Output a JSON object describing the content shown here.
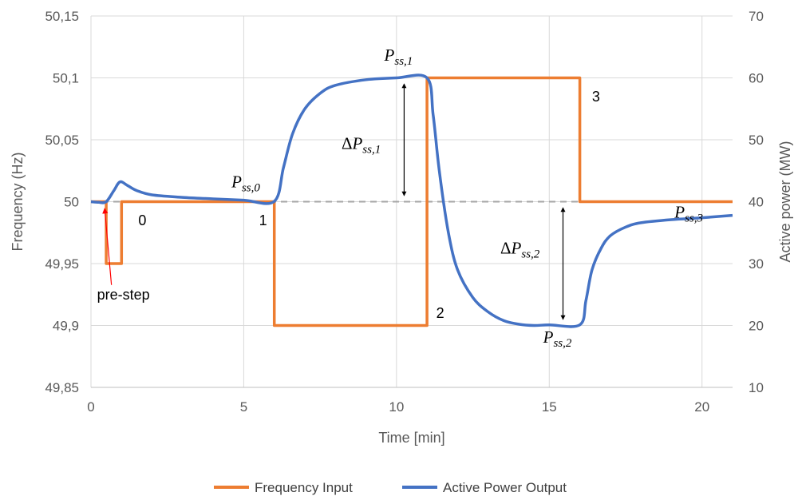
{
  "chart_data": {
    "type": "line",
    "title": "",
    "xlabel": "Time [min]",
    "ylabel_left": "Frequency (Hz)",
    "ylabel_right": "Active power (MW)",
    "xlim": [
      0,
      21
    ],
    "ylim_left": [
      49.85,
      50.15
    ],
    "ylim_right": [
      10,
      70
    ],
    "x_ticks": [
      0,
      5,
      10,
      15,
      20
    ],
    "x_tick_labels": [
      "0",
      "5",
      "10",
      "15",
      "20"
    ],
    "y_left_ticks": [
      49.85,
      49.9,
      49.95,
      50,
      50.05,
      50.1,
      50.15
    ],
    "y_left_tick_labels": [
      "49,85",
      "49,9",
      "49,95",
      "50",
      "50,05",
      "50,1",
      "50,15"
    ],
    "y_right_ticks": [
      10,
      20,
      30,
      40,
      50,
      60,
      70
    ],
    "y_right_tick_labels": [
      "10",
      "20",
      "30",
      "40",
      "50",
      "60",
      "70"
    ],
    "grid": "horizontal",
    "legend_position": "bottom",
    "reference_line": {
      "axis": "left",
      "y": 50,
      "style": "dashed",
      "color": "#a6a6a6"
    },
    "series": [
      {
        "name": "Frequency Input",
        "axis": "left",
        "color": "#ed7d31",
        "points": [
          [
            0,
            50.0
          ],
          [
            0.5,
            50.0
          ],
          [
            0.5,
            49.95
          ],
          [
            1.0,
            49.95
          ],
          [
            1.0,
            50.0
          ],
          [
            6.0,
            50.0
          ],
          [
            6.0,
            49.9
          ],
          [
            11.0,
            49.9
          ],
          [
            11.0,
            50.1
          ],
          [
            16.0,
            50.1
          ],
          [
            16.0,
            50.0
          ],
          [
            21.0,
            50.0
          ]
        ]
      },
      {
        "name": "Active Power Output",
        "axis": "right",
        "color": "#4472c4",
        "points": [
          [
            0,
            40.0
          ],
          [
            0.25,
            39.9
          ],
          [
            0.5,
            40.0
          ],
          [
            0.75,
            41.8
          ],
          [
            0.95,
            43.2
          ],
          [
            1.2,
            42.6
          ],
          [
            1.5,
            41.8
          ],
          [
            2.0,
            41.1
          ],
          [
            3.0,
            40.7
          ],
          [
            4.0,
            40.45
          ],
          [
            5.0,
            40.25
          ],
          [
            6.0,
            40.05
          ],
          [
            6.3,
            45.5
          ],
          [
            6.6,
            51.0
          ],
          [
            7.0,
            55.0
          ],
          [
            7.5,
            57.5
          ],
          [
            8.0,
            58.8
          ],
          [
            9.0,
            59.7
          ],
          [
            10.0,
            60.0
          ],
          [
            11.0,
            60.0
          ],
          [
            11.2,
            54.0
          ],
          [
            11.4,
            45.0
          ],
          [
            11.7,
            35.0
          ],
          [
            12.0,
            29.0
          ],
          [
            12.5,
            24.5
          ],
          [
            13.0,
            22.2
          ],
          [
            13.5,
            20.8
          ],
          [
            14.0,
            20.2
          ],
          [
            14.5,
            20.0
          ],
          [
            15.0,
            20.1
          ],
          [
            16.0,
            20.1
          ],
          [
            16.2,
            24.0
          ],
          [
            16.4,
            29.0
          ],
          [
            16.7,
            32.5
          ],
          [
            17.0,
            34.5
          ],
          [
            17.5,
            35.9
          ],
          [
            18.0,
            36.6
          ],
          [
            19.0,
            37.1
          ],
          [
            20.0,
            37.4
          ],
          [
            21.0,
            37.8
          ]
        ]
      }
    ],
    "annotations": [
      {
        "text": "0",
        "x": 1.55,
        "y_left": 49.985
      },
      {
        "text": "1",
        "x": 5.5,
        "y_left": 49.985
      },
      {
        "text": "2",
        "x": 11.3,
        "y_left": 49.91
      },
      {
        "text": "3",
        "x": 16.4,
        "y_left": 50.085
      },
      {
        "text": "pre-step",
        "x": 0.2,
        "y_left": 49.925,
        "arrow_to": [
          0.45,
          49.998
        ],
        "arrow_color": "#ff0000"
      }
    ],
    "math_labels": [
      {
        "base": "P",
        "sub": "ss,0",
        "x": 4.6,
        "y_right": 42.3
      },
      {
        "base": "P",
        "sub": "ss,1",
        "x": 9.6,
        "y_right": 62.8
      },
      {
        "base": "P",
        "sub": "ss,2",
        "x": 14.8,
        "y_right": 17.2
      },
      {
        "base": "P",
        "sub": "ss,3",
        "x": 19.1,
        "y_right": 37.4
      },
      {
        "prefix": "Δ",
        "base": "P",
        "sub": "ss,1",
        "x": 8.2,
        "y_right": 48.5
      },
      {
        "prefix": "Δ",
        "base": "P",
        "sub": "ss,2",
        "x": 13.4,
        "y_right": 31.6
      }
    ],
    "double_arrows": [
      {
        "x": 10.25,
        "from_right": 40,
        "to_right": 60
      },
      {
        "x": 15.45,
        "from_right": 20,
        "to_right": 40
      }
    ]
  }
}
